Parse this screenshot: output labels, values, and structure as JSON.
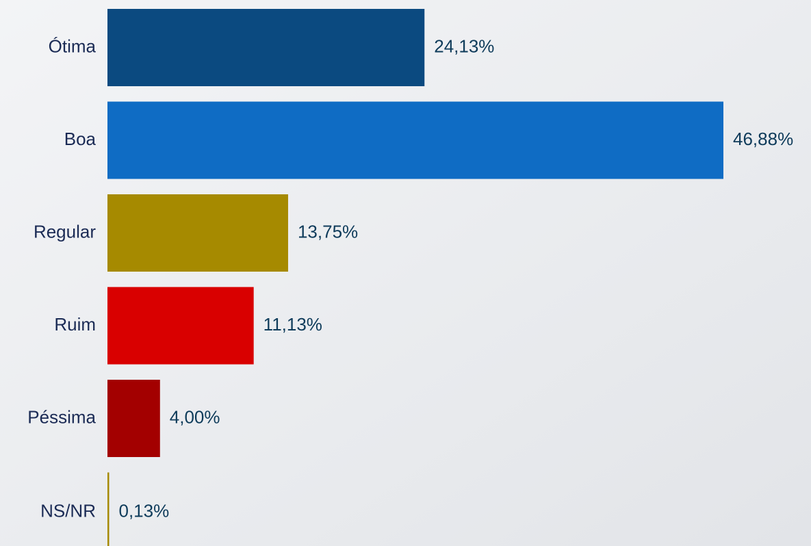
{
  "chart_data": {
    "type": "bar",
    "orientation": "horizontal",
    "categories": [
      "Ótima",
      "Boa",
      "Regular",
      "Ruim",
      "Péssima",
      "NS/NR"
    ],
    "values": [
      24.13,
      46.88,
      13.75,
      11.13,
      4.0,
      0.13
    ],
    "value_labels": [
      "24,13%",
      "46,88%",
      "13,75%",
      "11,13%",
      "4,00%",
      "0,13%"
    ],
    "colors": [
      "#0b4a80",
      "#0f6cc4",
      "#a68a00",
      "#d90000",
      "#a30000",
      "#a68a00"
    ]
  }
}
